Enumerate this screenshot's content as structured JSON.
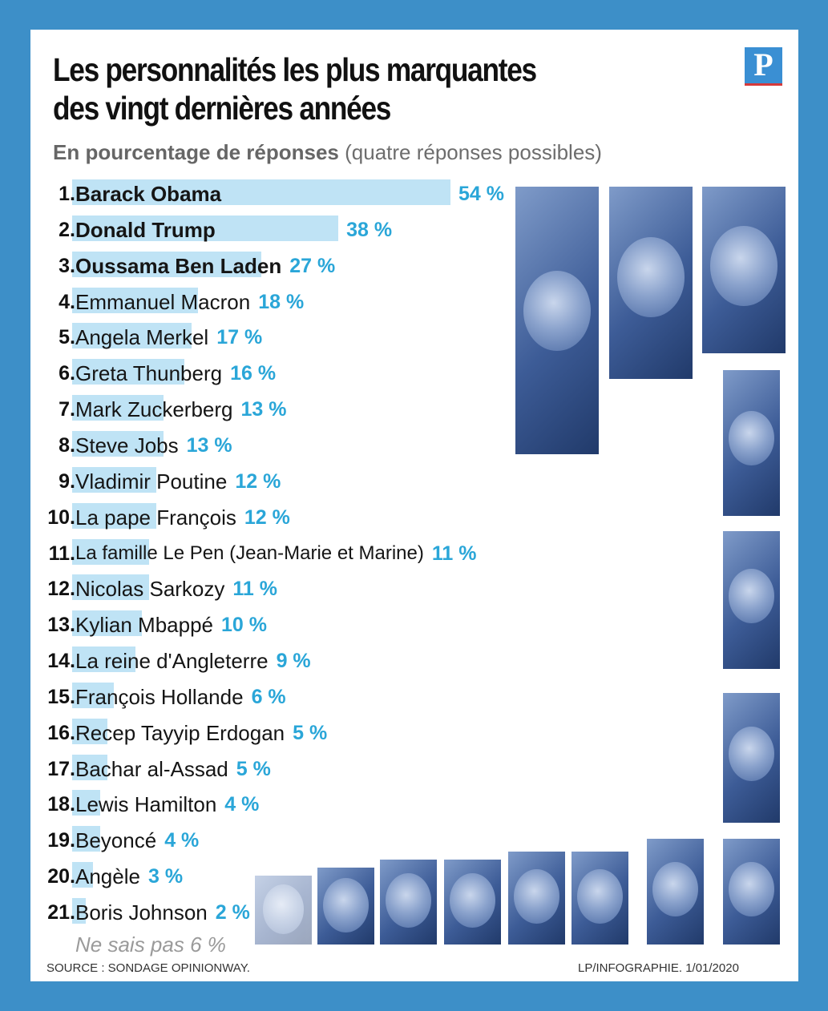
{
  "header": {
    "title_line1": "Les personnalités les plus marquantes",
    "title_line2": "des vingt dernières années",
    "subtitle_bold": "En pourcentage de réponses",
    "subtitle_rest": "(quatre réponses possibles)",
    "logo_letter": "P"
  },
  "chart_data": {
    "type": "bar",
    "title": "Les personnalités les plus marquantes des vingt dernières années",
    "subtitle": "En pourcentage de réponses (quatre réponses possibles)",
    "categories": [
      "Barack Obama",
      "Donald Trump",
      "Oussama Ben Laden",
      "Emmanuel Macron",
      "Angela Merkel",
      "Greta Thunberg",
      "Mark Zuckerberg",
      "Steve Jobs",
      "Vladimir Poutine",
      "La pape François",
      "La famille Le Pen (Jean-Marie et Marine)",
      "Nicolas Sarkozy",
      "Kylian Mbappé",
      "La reine d'Angleterre",
      "François Hollande",
      "Recep Tayyip Erdogan",
      "Bachar al-Assad",
      "Lewis Hamilton",
      "Beyoncé",
      "Angèle",
      "Boris Johnson"
    ],
    "values": [
      54,
      38,
      27,
      18,
      17,
      16,
      13,
      13,
      12,
      12,
      11,
      11,
      10,
      9,
      6,
      5,
      5,
      4,
      4,
      3,
      2
    ],
    "ranks": [
      "1.",
      "2.",
      "3.",
      "4.",
      "5.",
      "6.",
      "7.",
      "8.",
      "9.",
      "10.",
      "11.",
      "12.",
      "13.",
      "14.",
      "15.",
      "16.",
      "17.",
      "18.",
      "19.",
      "20.",
      "21."
    ],
    "value_labels": [
      "54 %",
      "38 %",
      "27 %",
      "18 %",
      "17 %",
      "16 %",
      "13 %",
      "13 %",
      "12 %",
      "12 %",
      "11 %",
      "11 %",
      "10 %",
      "9 %",
      "6 %",
      "5 %",
      "5 %",
      "4 %",
      "4 %",
      "3 %",
      "2 %"
    ],
    "bold_rows": [
      0,
      1,
      2
    ],
    "orientation": "horizontal",
    "unit": "%",
    "bar_color": "#bfe3f5",
    "label_color": "#2aa6d8"
  },
  "footer": {
    "dont_know": "Ne sais pas 6 %",
    "source": "SOURCE : SONDAGE OPINIONWAY.",
    "credit": "LP/INFOGRAPHIE.   1/01/2020"
  },
  "photos": [
    "obama-photo",
    "trump-photo",
    "ben-laden-photo",
    "macron-photo",
    "merkel-photo",
    "thunberg-photo",
    "zuckerberg-photo",
    "jobs-photo",
    "poutine-photo",
    "pape-francois-photo",
    "le-pen-photo",
    "sarkozy-photo",
    "mbappe-photo",
    "reine-photo"
  ],
  "colors": {
    "frame": "#3d8fc8",
    "bar": "#bfe3f5",
    "percent": "#2aa6d8",
    "photo_tint": "#3d5c97"
  }
}
